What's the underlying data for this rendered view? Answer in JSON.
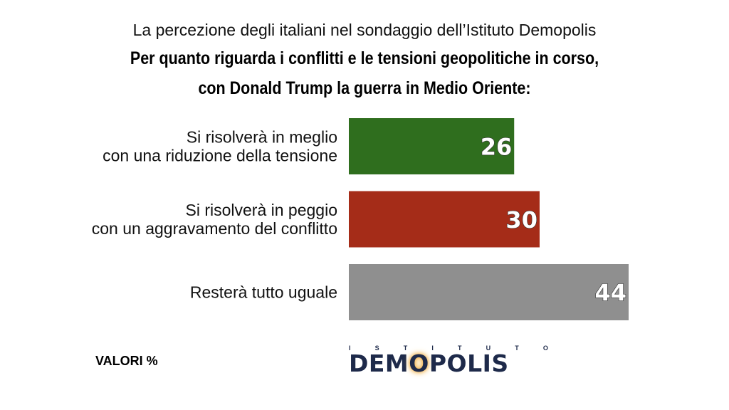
{
  "subtitle": "La percezione degli italiani nel sondaggio dell’Istituto Demopolis",
  "title_line1": "Per quanto riguarda i conflitti e le tensioni geopolitiche in corso,",
  "title_line2": "con Donald Trump la guerra in Medio Oriente:",
  "footnote": "VALORI %",
  "logo": {
    "top_letters": [
      "I",
      "S",
      "T",
      "I",
      "T",
      "U",
      "T",
      "O"
    ],
    "pre": "DEM",
    "highlight": "O",
    "post": "POLIS"
  },
  "chart_data": {
    "type": "bar",
    "orientation": "horizontal",
    "categories": [
      [
        "Si risolverà in meglio",
        "con una riduzione della tensione"
      ],
      [
        "Si risolverà in peggio",
        "con un aggravamento del conflitto"
      ],
      [
        "Resterà tutto uguale"
      ]
    ],
    "values": [
      26,
      30,
      44
    ],
    "value_labels": [
      "26",
      "30",
      "44"
    ],
    "colors": [
      "#2f6e1e",
      "#a52c18",
      "#8f8f8f"
    ],
    "xlim": [
      0,
      44
    ],
    "grid": false,
    "legend": "none"
  }
}
